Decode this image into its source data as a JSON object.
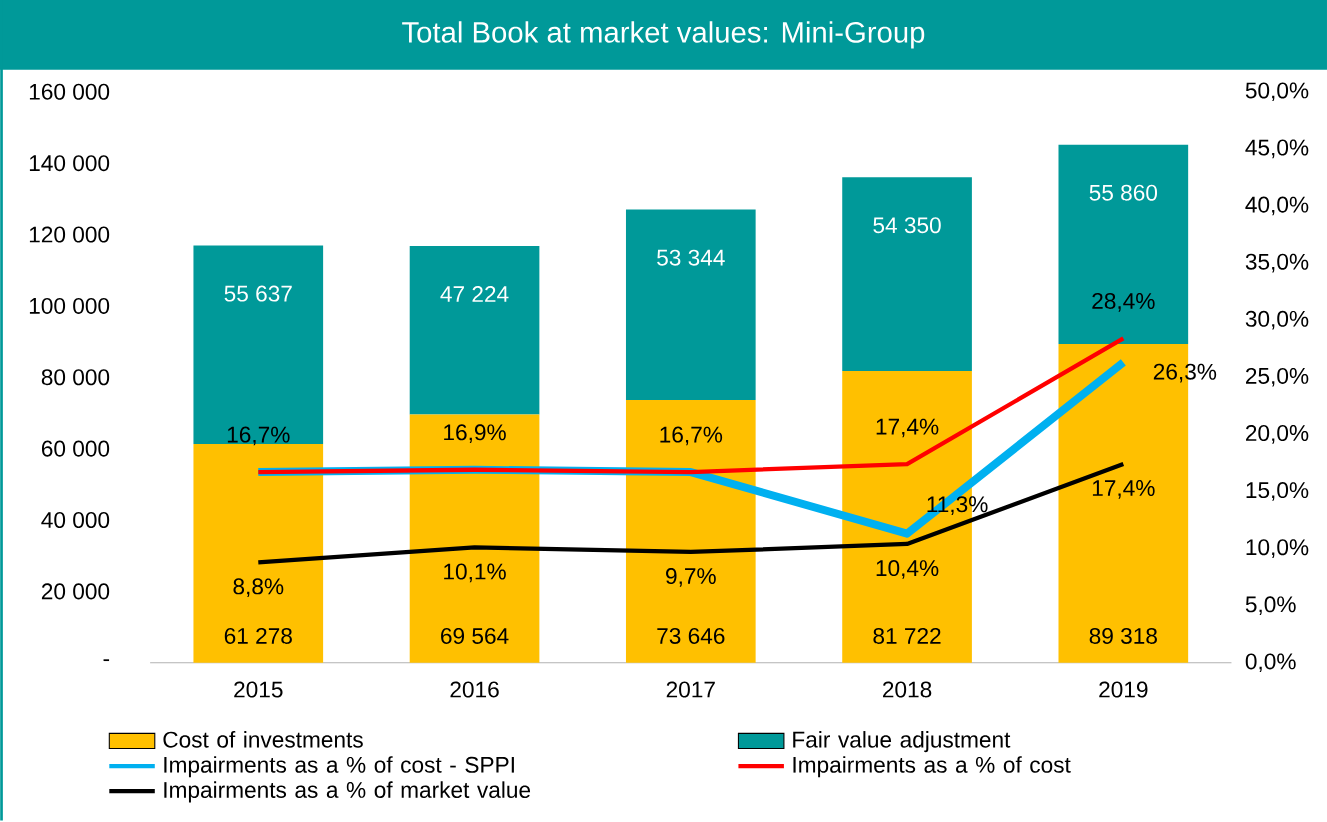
{
  "chart_data": {
    "type": "bar",
    "title": "Total Book at market values: Mini-Group",
    "categories": [
      "2015",
      "2016",
      "2017",
      "2018",
      "2019"
    ],
    "stacked": true,
    "legend": "bottom",
    "ylim": [
      0,
      160000
    ],
    "yticks": [
      {
        "value": 0,
        "label": "-"
      },
      {
        "value": 20000,
        "label": "20 000"
      },
      {
        "value": 40000,
        "label": "40 000"
      },
      {
        "value": 60000,
        "label": "60 000"
      },
      {
        "value": 80000,
        "label": "80 000"
      },
      {
        "value": 100000,
        "label": "100 000"
      },
      {
        "value": 120000,
        "label": "120 000"
      },
      {
        "value": 140000,
        "label": "140 000"
      },
      {
        "value": 160000,
        "label": "160 000"
      }
    ],
    "y2lim": [
      0,
      50
    ],
    "y2ticks": [
      {
        "value": 0,
        "label": "0,0%"
      },
      {
        "value": 5,
        "label": "5,0%"
      },
      {
        "value": 10,
        "label": "10,0%"
      },
      {
        "value": 15,
        "label": "15,0%"
      },
      {
        "value": 20,
        "label": "20,0%"
      },
      {
        "value": 25,
        "label": "25,0%"
      },
      {
        "value": 30,
        "label": "30,0%"
      },
      {
        "value": 35,
        "label": "35,0%"
      },
      {
        "value": 40,
        "label": "40,0%"
      },
      {
        "value": 45,
        "label": "45,0%"
      },
      {
        "value": 50,
        "label": "50,0%"
      }
    ],
    "series": [
      {
        "name": "Cost of investments",
        "color": "#ffc000",
        "values": [
          61278,
          69564,
          73646,
          81722,
          89318
        ],
        "value_labels": [
          "61 278",
          "69 564",
          "73 646",
          "81 722",
          "89 318"
        ]
      },
      {
        "name": "Fair value adjustment",
        "color": "#009999",
        "values": [
          55637,
          47224,
          53344,
          54350,
          55860
        ],
        "value_labels": [
          "55 637",
          "47 224",
          "53 344",
          "54 350",
          "55 860"
        ]
      },
      {
        "name": "Impairments as a % of cost - SPPI",
        "type": "line",
        "axis": "y2",
        "color": "#00b0f0",
        "values": [
          16.7,
          16.9,
          16.7,
          11.3,
          26.3
        ],
        "value_labels": [
          null,
          null,
          null,
          "11,3%",
          "26,3%"
        ]
      },
      {
        "name": "Impairments as a % of cost",
        "type": "line",
        "axis": "y2",
        "color": "#ff0000",
        "values": [
          16.7,
          16.9,
          16.7,
          17.4,
          28.4
        ],
        "value_labels": [
          "16,7%",
          "16,9%",
          "16,7%",
          "17,4%",
          "28,4%"
        ]
      },
      {
        "name": "Impairments as a % of market value",
        "type": "line",
        "axis": "y2",
        "color": "#000000",
        "values": [
          8.8,
          10.1,
          9.7,
          10.4,
          17.4
        ],
        "value_labels": [
          "8,8%",
          "10,1%",
          "9,7%",
          "10,4%",
          "17,4%"
        ]
      }
    ]
  }
}
